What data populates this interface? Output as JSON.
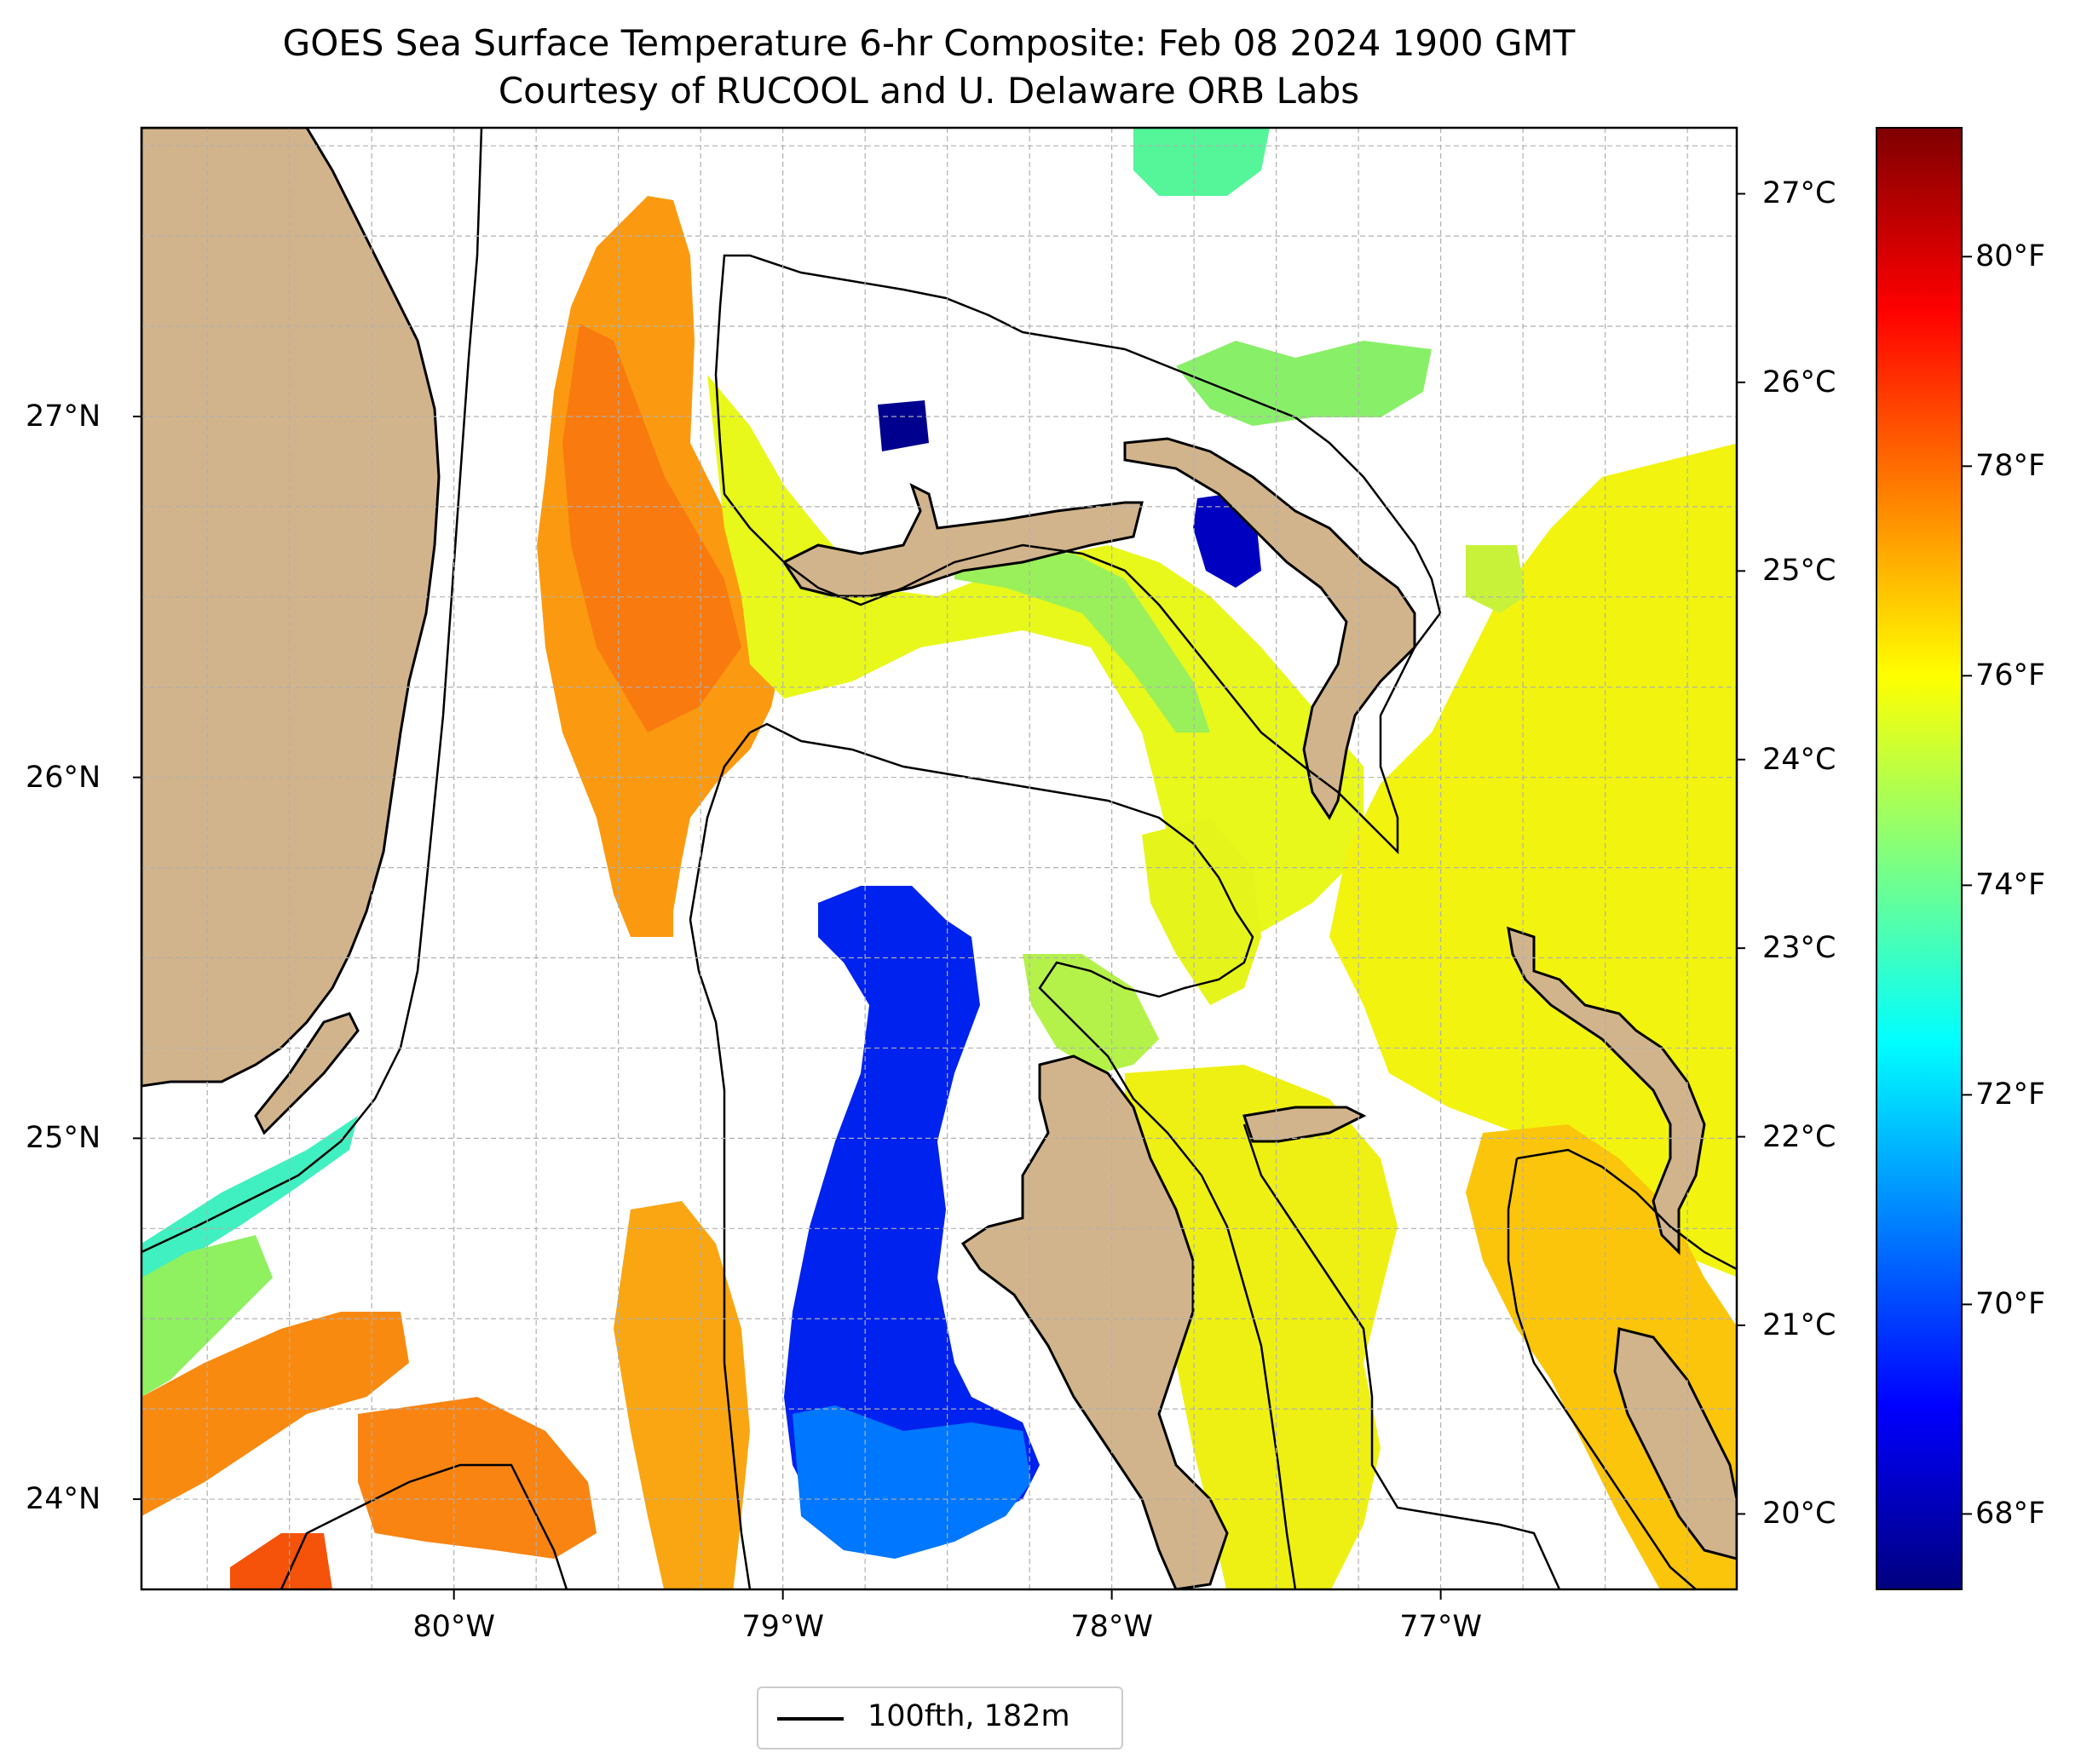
{
  "title": {
    "line1": "GOES Sea Surface Temperature 6-hr Composite: Feb 08 2024 1900 GMT",
    "line2": "Courtesy of RUCOOL and U. Delaware ORB Labs"
  },
  "map": {
    "lon_range": [
      -80.95,
      -76.1
    ],
    "lat_range": [
      23.75,
      27.8
    ],
    "lat_ticks": [
      {
        "value": 27,
        "label": "27°N"
      },
      {
        "value": 26,
        "label": "26°N"
      },
      {
        "value": 25,
        "label": "25°N"
      },
      {
        "value": 24,
        "label": "24°N"
      }
    ],
    "lon_ticks": [
      {
        "value": -80,
        "label": "80°W"
      },
      {
        "value": -79,
        "label": "79°W"
      },
      {
        "value": -78,
        "label": "78°W"
      },
      {
        "value": -77,
        "label": "77°W"
      }
    ],
    "gridlines": true,
    "colors": {
      "land": "#d2b48c",
      "ocean_nodata": "#ffffff",
      "isobath": "#000000",
      "grid": "#b0b0b0"
    }
  },
  "legend": {
    "label": "100fth, 182m",
    "position": "bottom-center"
  },
  "colorbar": {
    "colormap": "jet",
    "celsius_range": [
      19.6,
      27.35
    ],
    "celsius_ticks": [
      {
        "value": 20,
        "label": "20°C"
      },
      {
        "value": 21,
        "label": "21°C"
      },
      {
        "value": 22,
        "label": "22°C"
      },
      {
        "value": 23,
        "label": "23°C"
      },
      {
        "value": 24,
        "label": "24°C"
      },
      {
        "value": 25,
        "label": "25°C"
      },
      {
        "value": 26,
        "label": "26°C"
      },
      {
        "value": 27,
        "label": "27°C"
      }
    ],
    "fahrenheit_ticks": [
      {
        "value": 68,
        "label": "68°F"
      },
      {
        "value": 70,
        "label": "70°F"
      },
      {
        "value": 72,
        "label": "72°F"
      },
      {
        "value": 74,
        "label": "74°F"
      },
      {
        "value": 76,
        "label": "76°F"
      },
      {
        "value": 78,
        "label": "78°F"
      },
      {
        "value": 80,
        "label": "80°F"
      }
    ],
    "jet_stops": [
      "#00007f",
      "#0000ff",
      "#007fff",
      "#00ffff",
      "#7fff7f",
      "#ffff00",
      "#ff7f00",
      "#ff0000",
      "#7f0000"
    ]
  }
}
